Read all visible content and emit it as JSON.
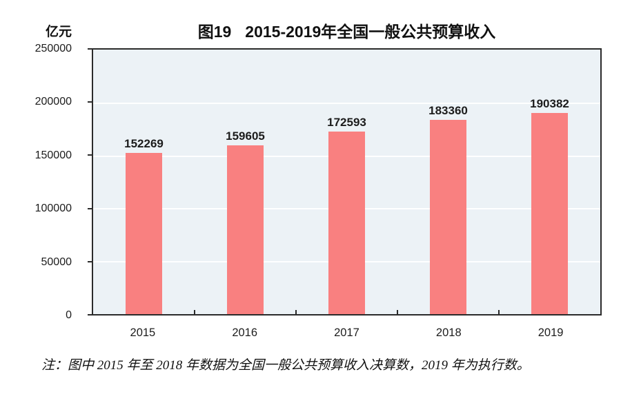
{
  "figure": {
    "unit_label": "亿元",
    "title_prefix": "图19",
    "title_main": "2015-2019年全国一般公共预算收入",
    "note": "注：图中 2015 年至 2018 年数据为全国一般公共预算收入决算数，2019 年为执行数。"
  },
  "chart_data": {
    "type": "bar",
    "title": "图19 2015-2019年全国一般公共预算收入",
    "ylabel": "亿元",
    "xlabel": "",
    "categories": [
      "2015",
      "2016",
      "2017",
      "2018",
      "2019"
    ],
    "values": [
      152269,
      159605,
      172593,
      183360,
      190382
    ],
    "ylim": [
      0,
      250000
    ],
    "ytick_interval": 50000,
    "yticks": [
      "250000",
      "200000",
      "150000",
      "100000",
      "50000",
      "0"
    ],
    "grid": true,
    "legend": false,
    "data_labels": true,
    "colors": {
      "bar": "#f98080",
      "plot_background": "#ecf2f6",
      "gridline": "#ffffff",
      "axis": "#2a2a2a",
      "text": "#1c1c1c"
    },
    "note": "图中 2015 年至 2018 年数据为全国一般公共预算收入决算数，2019 年为执行数。"
  }
}
